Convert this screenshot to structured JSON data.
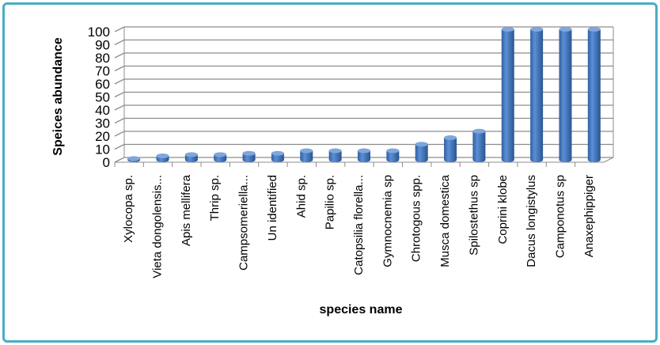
{
  "chart_data": {
    "type": "bar",
    "style": "3d-cylinder",
    "title": "",
    "xlabel": "species name",
    "ylabel": "Speices abundance",
    "ylim": [
      0,
      100
    ],
    "yticks": [
      0,
      10,
      20,
      30,
      40,
      50,
      60,
      70,
      80,
      90,
      100
    ],
    "grid": true,
    "bar_color": "#4f81bd",
    "border_color": "#4bacc6",
    "categories": [
      "Xylocopa sp.",
      "Vieta dongolensis...",
      "Apis mellifera",
      "Thrip sp.",
      "Campsomeriella...",
      "Un identified",
      "Ahid sp.",
      "Papilio sp.",
      "Catopsilia florella...",
      "Gymnocnemia sp",
      "Chrotogous spp.",
      "Musca domestica",
      "Spilostethus sp",
      "Coprini klobe",
      "Dacus longistylus",
      "Camponotus sp",
      "Anaxephippiger"
    ],
    "values": [
      1,
      3,
      4,
      4,
      5,
      5,
      7,
      7,
      7,
      7,
      12,
      17,
      22,
      100,
      100,
      100,
      100
    ]
  }
}
